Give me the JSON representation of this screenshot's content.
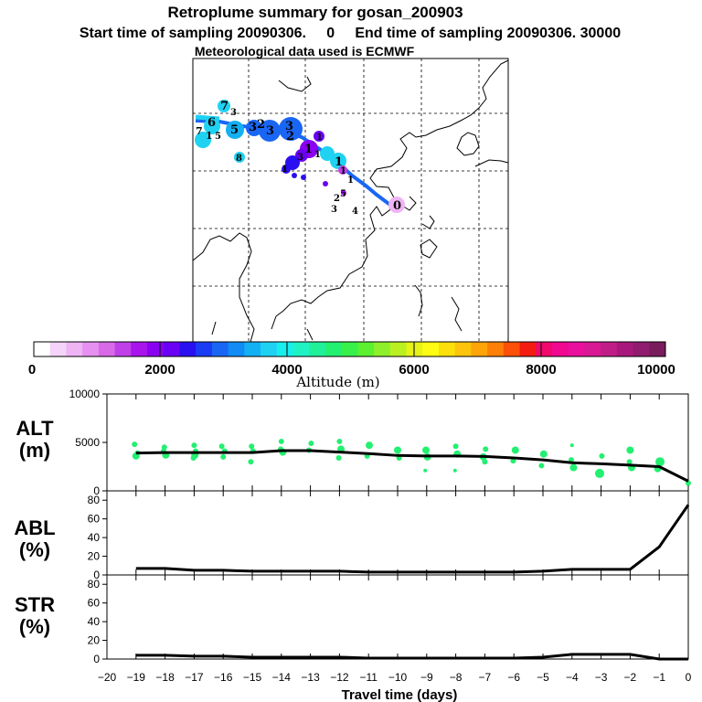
{
  "title": {
    "line1": "Retroplume summary for gosan_200903",
    "line2": "Start time of sampling 20090306.     0     End time of sampling 20090306. 30000",
    "line3": "Meteorological data used is ECMWF"
  },
  "colorbar": {
    "label": "Altitude  (m)",
    "ticks": [
      "0",
      "2000",
      "4000",
      "6000",
      "8000",
      "10000"
    ],
    "colors": [
      "#ffffff",
      "#f4d4f8",
      "#eeb4f4",
      "#e690f0",
      "#d86ae8",
      "#c040e8",
      "#a814ec",
      "#8a00f0",
      "#6a00f4",
      "#2a10f0",
      "#1a3cf4",
      "#1a66f4",
      "#108cf4",
      "#14b0f4",
      "#20d2f2",
      "#18eeee",
      "#20f2c4",
      "#20f09a",
      "#22f070",
      "#38f04a",
      "#5cf030",
      "#8ef02a",
      "#baf022",
      "#e6f218",
      "#fcfc14",
      "#fce00c",
      "#fcc40c",
      "#fca408",
      "#fc8008",
      "#fc5008",
      "#f41c10",
      "#f0086c",
      "#f00890",
      "#e8109c",
      "#d81894",
      "#c01c88",
      "#a8187c",
      "#901c70",
      "#781c5c"
    ]
  },
  "map": {
    "markers": [
      {
        "label": "7",
        "color": "#20d2f2"
      },
      {
        "label": "3",
        "color": "#20d2f2"
      },
      {
        "label": "6",
        "color": "#20d2f2"
      },
      {
        "label": "5",
        "color": "#14b0f4"
      },
      {
        "label": "3",
        "color": "#1a66f4"
      },
      {
        "label": "2",
        "color": "#1a66f4"
      },
      {
        "label": "3",
        "color": "#1a3cf4"
      },
      {
        "label": "3",
        "color": "#1a66f4"
      },
      {
        "label": "2",
        "color": "#1a66f4"
      },
      {
        "label": "7",
        "color": "#20d2f2"
      },
      {
        "label": "1",
        "color": "#20d2f2"
      },
      {
        "label": "5",
        "color": "#20d2f2"
      },
      {
        "label": "8",
        "color": "#20d2f2"
      },
      {
        "label": "1",
        "color": "#8a00f0"
      },
      {
        "label": "1",
        "color": "#8a00f0"
      },
      {
        "label": "3",
        "color": "#8a00f0"
      },
      {
        "label": "1",
        "color": "#8a00f0"
      },
      {
        "label": "1",
        "color": "#20d2f2"
      },
      {
        "label": "1",
        "color": "#14b0f4"
      },
      {
        "label": "1",
        "color": "#8a00f0"
      },
      {
        "label": "1",
        "color": "#2a10f0"
      },
      {
        "label": "2",
        "color": "#6a00f4"
      },
      {
        "label": "5",
        "color": "#a814ec"
      },
      {
        "label": "3",
        "color": "#000000"
      },
      {
        "label": "4",
        "color": "#000000"
      },
      {
        "label": "0",
        "color": "#e690f0"
      }
    ]
  },
  "chart_data": [
    {
      "type": "scatter",
      "title": "ALT (m)",
      "panel_label_1": "ALT",
      "panel_label_2": "(m)",
      "xlabel": "Travel time (days)",
      "xlim": [
        -20,
        0
      ],
      "ylim": [
        0,
        10000
      ],
      "yticks": [
        "0",
        "5000",
        "10000"
      ],
      "mean_line": {
        "x": [
          -19,
          -18,
          -17,
          -16,
          -15,
          -14,
          -13,
          -12,
          -11,
          -10,
          -9,
          -8,
          -7,
          -6,
          -5,
          -4,
          -3,
          -2,
          -1,
          0
        ],
        "y": [
          3900,
          3950,
          3950,
          3950,
          3950,
          4150,
          4150,
          4000,
          3850,
          3650,
          3600,
          3600,
          3550,
          3400,
          3200,
          2900,
          2800,
          2650,
          2500,
          1000
        ]
      },
      "dots": {
        "x": [
          -19,
          -19,
          -19,
          -18,
          -18,
          -18,
          -17,
          -17,
          -17,
          -17,
          -16,
          -16,
          -16,
          -15,
          -15,
          -15,
          -14,
          -14,
          -14,
          -13,
          -13,
          -12,
          -12,
          -12,
          -11,
          -11,
          -10,
          -10,
          -9,
          -9,
          -9,
          -8,
          -8,
          -8,
          -7,
          -7,
          -7,
          -6,
          -6,
          -5,
          -5,
          -4,
          -4,
          -4,
          -3,
          -3,
          -2,
          -2,
          -2,
          -1,
          -1,
          0
        ],
        "y": [
          4800,
          3600,
          3900,
          4500,
          3700,
          4100,
          4700,
          4100,
          3400,
          3700,
          4600,
          3500,
          4100,
          4600,
          4100,
          3000,
          5100,
          4000,
          4300,
          4900,
          4200,
          5100,
          4300,
          3400,
          4700,
          3600,
          4200,
          3400,
          4200,
          3500,
          2100,
          4600,
          3800,
          2100,
          4300,
          3500,
          3000,
          4200,
          3100,
          3800,
          2600,
          4700,
          2400,
          3200,
          3600,
          1800,
          4200,
          2400,
          3000,
          3000,
          2300,
          800
        ],
        "size": [
          3,
          4,
          3,
          3,
          4,
          3,
          3,
          3,
          3,
          4,
          3,
          3,
          3,
          3,
          3,
          3,
          3,
          4,
          3,
          3,
          3,
          3,
          4,
          3,
          4,
          3,
          4,
          3,
          4,
          4,
          2,
          3,
          4,
          2,
          3,
          4,
          3,
          4,
          3,
          4,
          3,
          2,
          4,
          3,
          3,
          5,
          4,
          4,
          3,
          5,
          4,
          3
        ]
      }
    },
    {
      "type": "line",
      "title": "ABL (%)",
      "panel_label_1": "ABL",
      "panel_label_2": "(%)",
      "xlim": [
        -20,
        0
      ],
      "ylim": [
        0,
        90
      ],
      "yticks": [
        "0",
        "20",
        "40",
        "60",
        "80"
      ],
      "x": [
        -19,
        -18,
        -17,
        -16,
        -15,
        -14,
        -13,
        -12,
        -11,
        -10,
        -9,
        -8,
        -7,
        -6,
        -5,
        -4,
        -3,
        -2,
        -1,
        0
      ],
      "y": [
        7,
        7,
        5,
        5,
        4,
        4,
        4,
        4,
        3,
        3,
        3,
        3,
        3,
        3,
        4,
        6,
        6,
        6,
        30,
        75
      ]
    },
    {
      "type": "line",
      "title": "STR (%)",
      "panel_label_1": "STR",
      "panel_label_2": "(%)",
      "xlabel": "Travel time (days)",
      "xlim": [
        -20,
        0
      ],
      "ylim": [
        0,
        90
      ],
      "yticks": [
        "0",
        "20",
        "40",
        "60",
        "80"
      ],
      "xtick_labels": [
        "−20",
        "−19",
        "−18",
        "−17",
        "−16",
        "−15",
        "−14",
        "−13",
        "−12",
        "−11",
        "−10",
        "−9",
        "−8",
        "−7",
        "−6",
        "−5",
        "−4",
        "−3",
        "−2",
        "−1",
        "0"
      ],
      "x": [
        -19,
        -18,
        -17,
        -16,
        -15,
        -14,
        -13,
        -12,
        -11,
        -10,
        -9,
        -8,
        -7,
        -6,
        -5,
        -4,
        -3,
        -2,
        -1,
        0
      ],
      "y": [
        4,
        4,
        3,
        3,
        2,
        2,
        2,
        2,
        1,
        1,
        1,
        1,
        1,
        1,
        2,
        5,
        5,
        5,
        0,
        0
      ]
    }
  ]
}
